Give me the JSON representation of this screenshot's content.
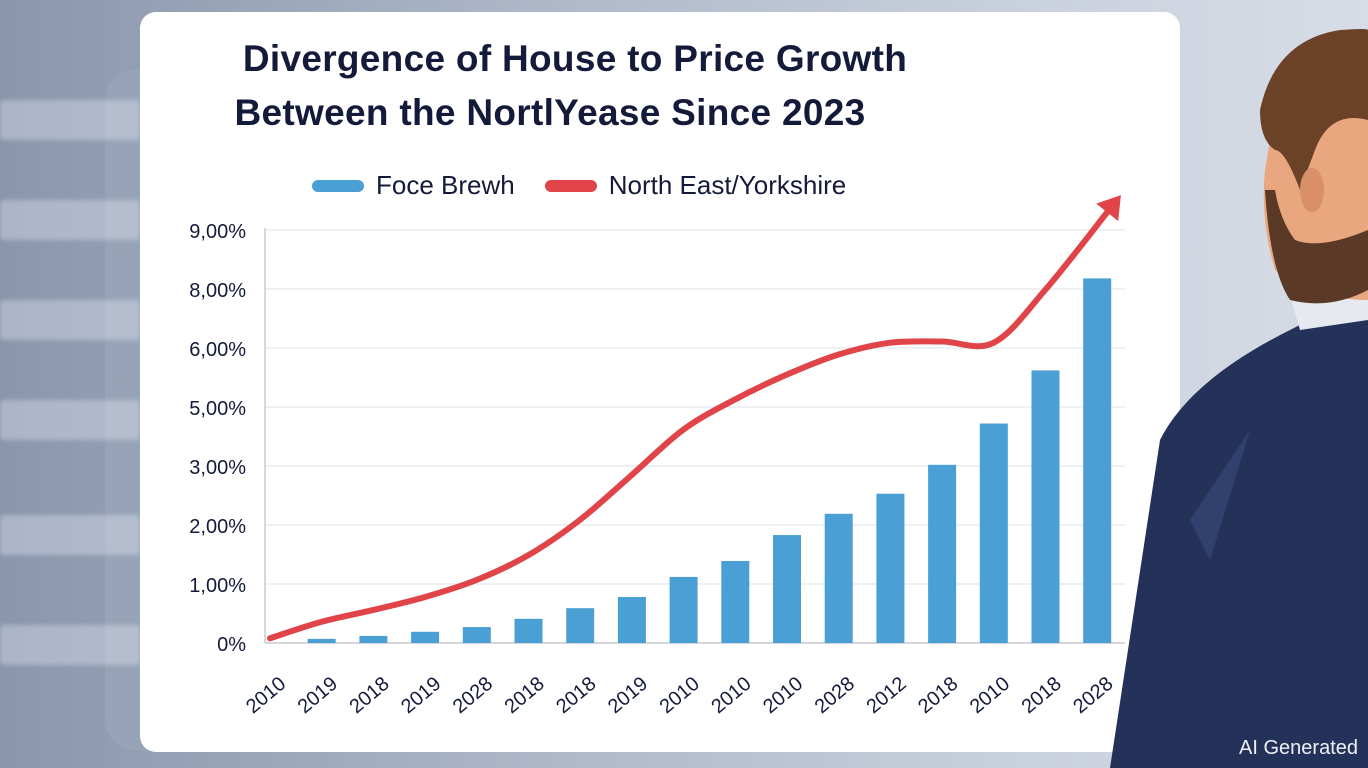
{
  "chart_data": {
    "type": "bar",
    "title": "Divergence of House to Price Growth\nBetween the NortlYease Since 2023",
    "title_lines": [
      "Divergence of House to Price Growth",
      "Between the NortlYease Since 2023"
    ],
    "xlabel": "",
    "ylabel": "",
    "categories": [
      "2010",
      "2019",
      "2018",
      "2019",
      "2028",
      "2018",
      "2018",
      "2019",
      "2010",
      "2010",
      "2010",
      "2028",
      "2012",
      "2018",
      "2010",
      "2018",
      "2028"
    ],
    "y_ticks": [
      0,
      1,
      2,
      3,
      5,
      6,
      8,
      9
    ],
    "y_tick_labels": [
      "0%",
      "1,00%",
      "2,00%",
      "3,00%",
      "5,00%",
      "6,00%",
      "8,00%",
      "9,00%"
    ],
    "y_scale": "ticks evenly spaced (non-linear labels)",
    "ylim": [
      0,
      9
    ],
    "grid": true,
    "legend_position": "top",
    "series": [
      {
        "name": "Foce Brewh",
        "type": "bar",
        "color": "#4a9fd4",
        "values": [
          0,
          0.07,
          0.12,
          0.19,
          0.27,
          0.41,
          0.59,
          0.78,
          1.12,
          1.39,
          1.83,
          2.19,
          2.53,
          3.04,
          4.44,
          5.62,
          8.18
        ]
      },
      {
        "name": "North East/Yorkshire",
        "type": "line",
        "color": "#e04448",
        "arrow_end": true,
        "values": [
          0.08,
          0.36,
          0.56,
          0.78,
          1.07,
          1.49,
          2.09,
          2.85,
          4.24,
          5.13,
          5.55,
          5.89,
          6.18,
          6.22,
          6.18,
          7.98,
          9.3
        ]
      }
    ]
  },
  "watermark": "AI Generated"
}
